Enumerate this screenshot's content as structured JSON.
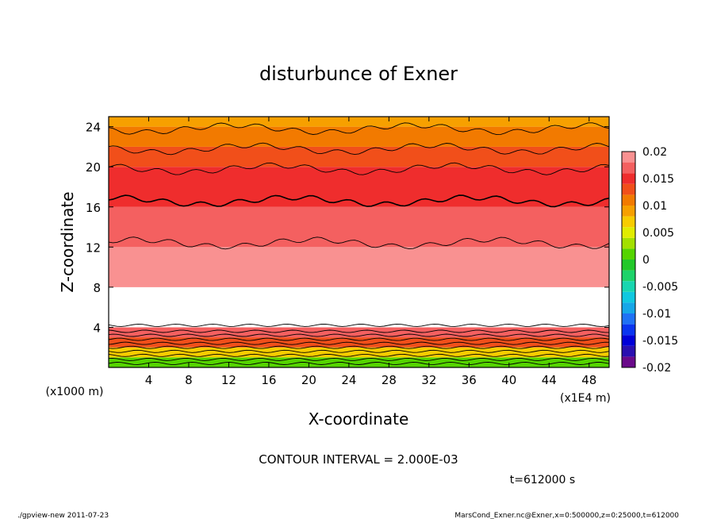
{
  "chart_data": {
    "type": "heatmap",
    "title": "disturbunce of Exner",
    "xlabel": "X-coordinate",
    "ylabel": "Z-coordinate",
    "x_unit_label": "(x1E4 m)",
    "y_unit_label": "(x1000 m)",
    "xlim": [
      0,
      50
    ],
    "ylim": [
      0,
      25
    ],
    "x_ticks": [
      4,
      8,
      12,
      16,
      20,
      24,
      28,
      32,
      36,
      40,
      44,
      48
    ],
    "y_ticks": [
      4,
      8,
      12,
      16,
      20,
      24
    ],
    "contour_interval_text": "CONTOUR INTERVAL = 2.000E-03",
    "time_text": "t=612000 s",
    "colorbar": {
      "tick_labels": [
        "0.02",
        "0.015",
        "0.01",
        "0.005",
        "0",
        "-0.005",
        "-0.01",
        "-0.015",
        "-0.02"
      ],
      "range": [
        -0.02,
        0.02
      ],
      "levels": [
        {
          "lo": -0.02,
          "color": "#6a0a8a"
        },
        {
          "lo": -0.018,
          "color": "#2a10b0"
        },
        {
          "lo": -0.016,
          "color": "#0000d8"
        },
        {
          "lo": -0.014,
          "color": "#0a35f0"
        },
        {
          "lo": -0.012,
          "color": "#1f72f5"
        },
        {
          "lo": -0.01,
          "color": "#16a7e8"
        },
        {
          "lo": -0.008,
          "color": "#10c8e0"
        },
        {
          "lo": -0.006,
          "color": "#18d6b0"
        },
        {
          "lo": -0.004,
          "color": "#1ed36a"
        },
        {
          "lo": -0.002,
          "color": "#22c82a"
        },
        {
          "lo": 0.0,
          "color": "#55d400"
        },
        {
          "lo": 0.002,
          "color": "#a3e000"
        },
        {
          "lo": 0.004,
          "color": "#e1ec00"
        },
        {
          "lo": 0.006,
          "color": "#f8cc00"
        },
        {
          "lo": 0.008,
          "color": "#f7a000"
        },
        {
          "lo": 0.01,
          "color": "#f27a00"
        },
        {
          "lo": 0.012,
          "color": "#f14f1a"
        },
        {
          "lo": 0.014,
          "color": "#ef2d2d"
        },
        {
          "lo": 0.016,
          "color": "#f46060"
        },
        {
          "lo": 0.018,
          "color": "#f99191"
        }
      ],
      "white_above": 0.02
    },
    "description_bands": [
      {
        "z": [
          0,
          1
        ],
        "value": 0.001
      },
      {
        "z": [
          1,
          2
        ],
        "value": 0.007
      },
      {
        "z": [
          2,
          3
        ],
        "value": 0.012
      },
      {
        "z": [
          3,
          4
        ],
        "value": 0.016
      },
      {
        "z": [
          4,
          8
        ],
        "value": 0.021
      },
      {
        "z": [
          8,
          12
        ],
        "value": 0.019
      },
      {
        "z": [
          12,
          16
        ],
        "value": 0.016
      },
      {
        "z": [
          16,
          20
        ],
        "value": 0.014
      },
      {
        "z": [
          20,
          22
        ],
        "value": 0.012
      },
      {
        "z": [
          22,
          24
        ],
        "value": 0.01
      },
      {
        "z": [
          24,
          25
        ],
        "value": 0.008
      }
    ]
  },
  "footer": {
    "left": "./gpview-new   2011-07-23",
    "right": "MarsCond_Exner.nc@Exner,x=0:500000,z=0:25000,t=612000"
  }
}
